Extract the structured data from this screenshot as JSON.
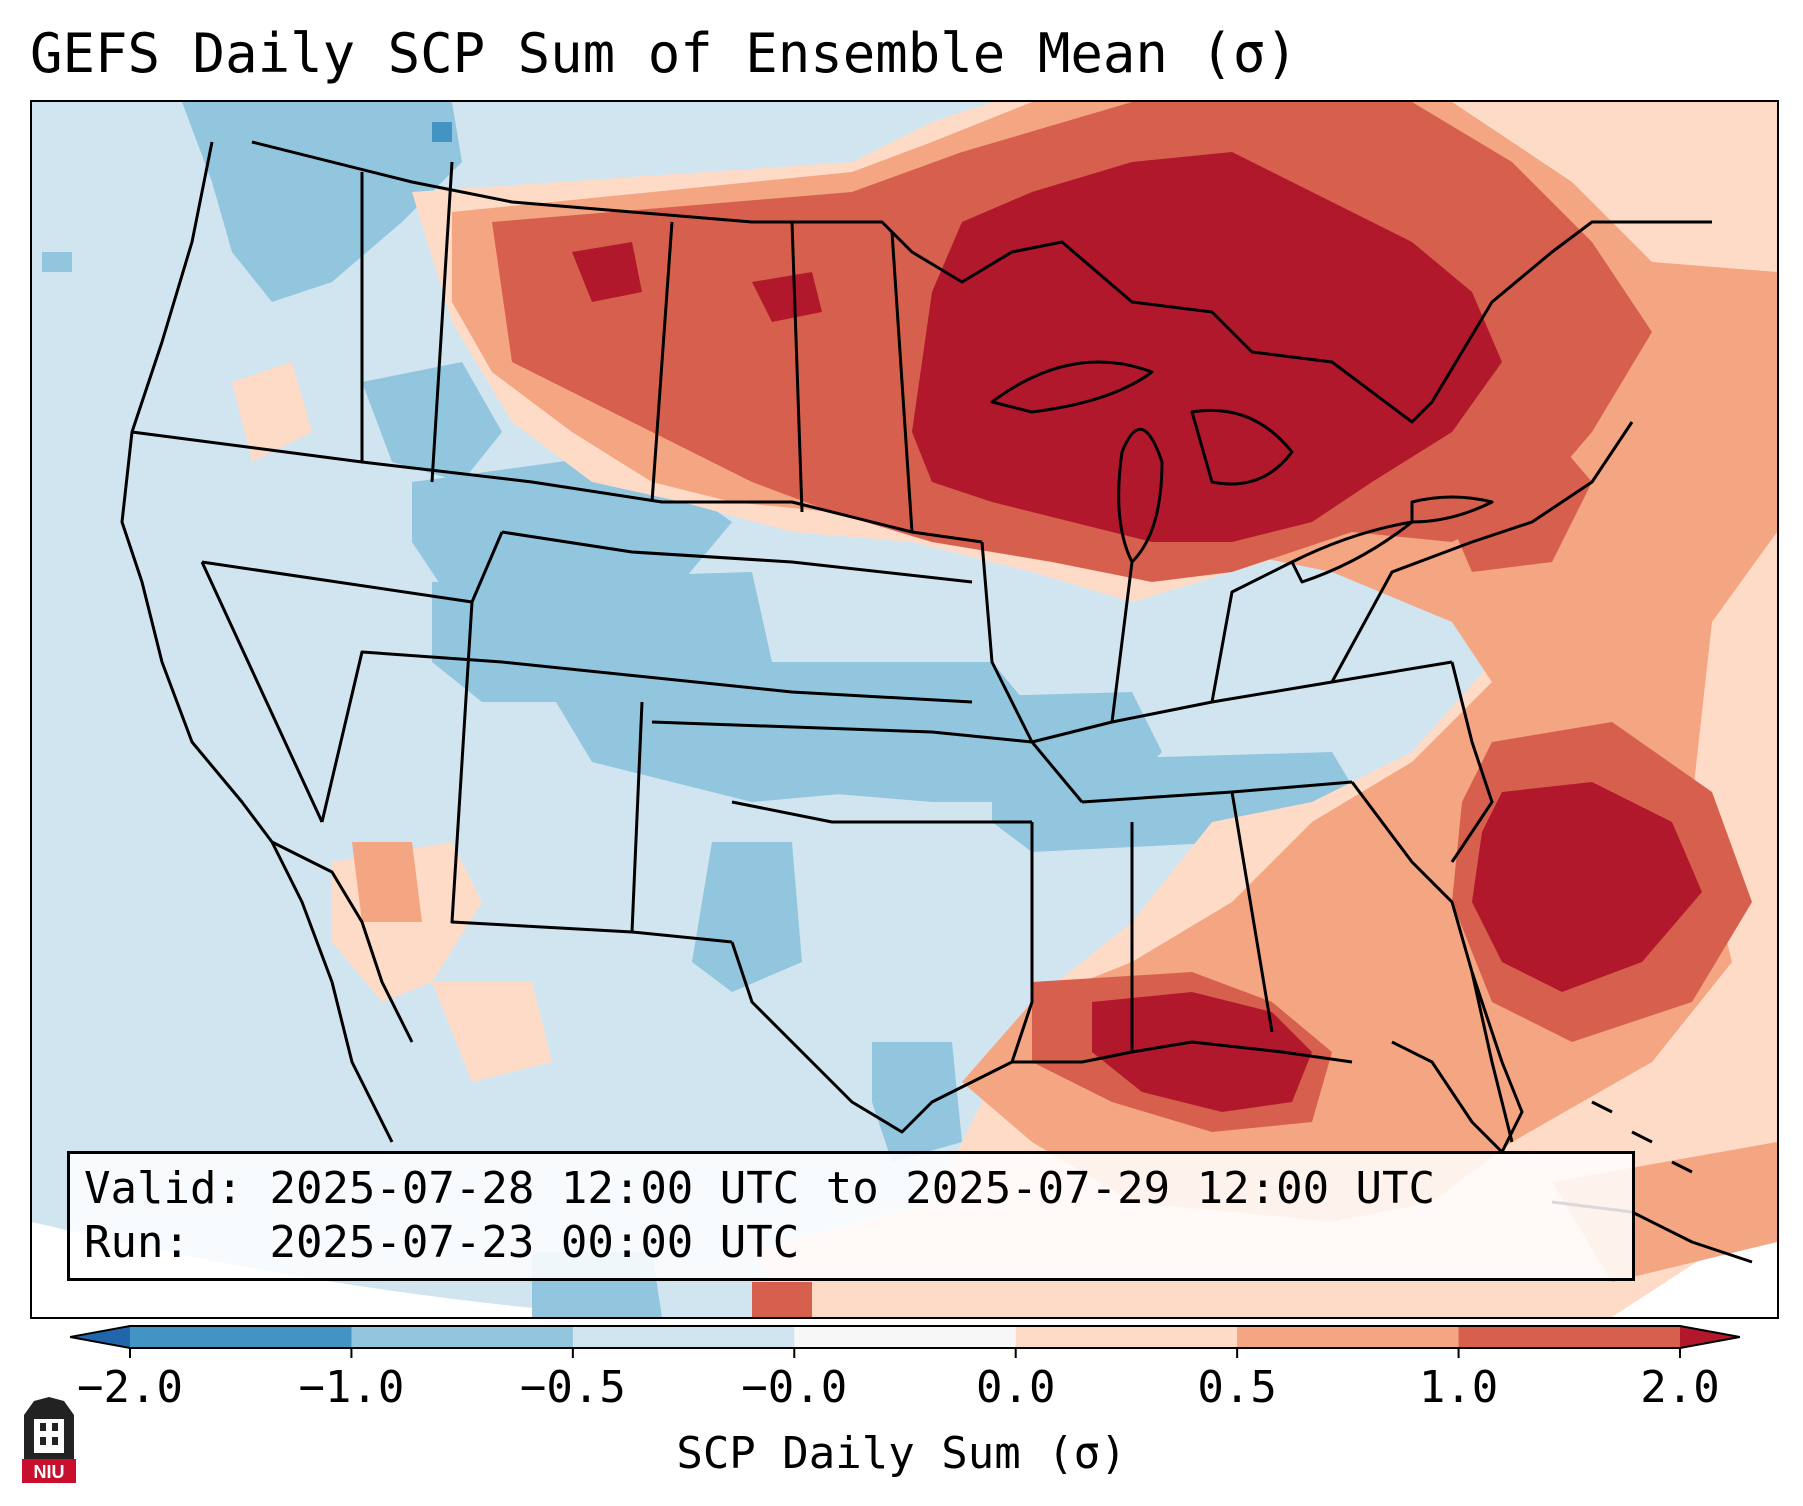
{
  "title": "GEFS Daily SCP Sum of Ensemble Mean (σ)",
  "info": {
    "valid_label": "Valid:",
    "valid_value": "2025-07-28 12:00 UTC to 2025-07-29 12:00 UTC",
    "run_label": "Run:",
    "run_value": "2025-07-23 00:00 UTC"
  },
  "colorbar": {
    "label": "SCP Daily Sum (σ)",
    "ticks": [
      "−2.0",
      "−1.0",
      "−0.5",
      "−0.0",
      "0.0",
      "0.5",
      "1.0",
      "2.0"
    ],
    "colors": [
      "#4393c3",
      "#92c5de",
      "#d1e5f0",
      "#f7f7f7",
      "#fddbc7",
      "#f4a582",
      "#d6604d"
    ],
    "under_color": "#2166ac",
    "over_color": "#b2182b"
  },
  "map": {
    "background_color": "#d1e5f0",
    "outside_color": "#ffffff",
    "line_color": "#000000"
  },
  "logo": {
    "text": "NIU",
    "color": "#c8102e"
  }
}
